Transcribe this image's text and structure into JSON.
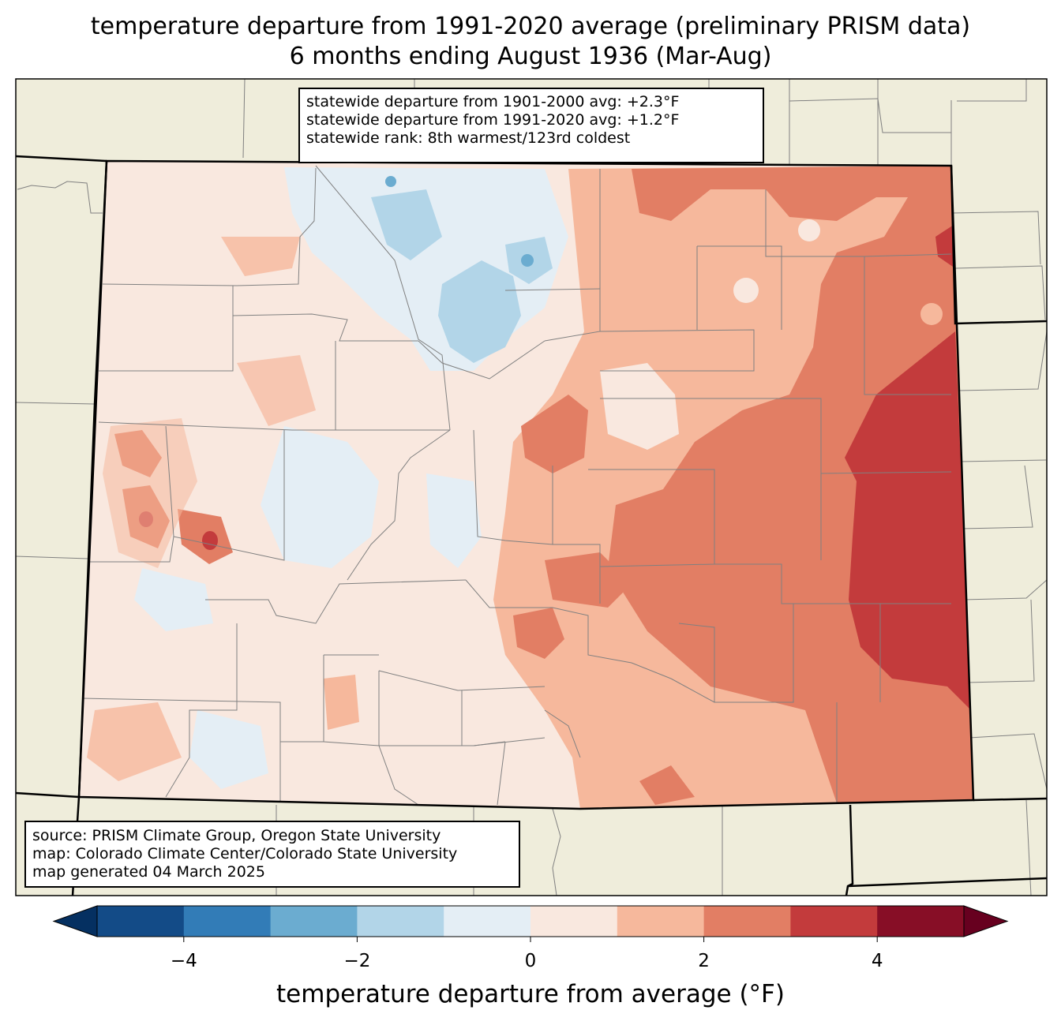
{
  "title_line1": "temperature departure from 1991-2020 average (preliminary PRISM data)",
  "title_line2": "6 months ending August 1936 (Mar-Aug)",
  "stats": {
    "line1": "statewide departure from 1901-2000 avg: +2.3°F",
    "line2": "statewide departure from 1991-2020 avg: +1.2°F",
    "line3": "statewide rank: 8th warmest/123rd coldest"
  },
  "source": {
    "line1": "source: PRISM Climate Group, Oregon State University",
    "line2": "map: Colorado Climate Center/Colorado State University",
    "line3": "map generated 04 March 2025"
  },
  "colorbar": {
    "label": "temperature departure from average (°F)",
    "min": -5,
    "max": 5,
    "bins": [
      {
        "from": -5,
        "to": -4,
        "color": "#134b87"
      },
      {
        "from": -4,
        "to": -3,
        "color": "#327cb7"
      },
      {
        "from": -3,
        "to": -2,
        "color": "#6bacd0"
      },
      {
        "from": -2,
        "to": -1,
        "color": "#b2d5e8"
      },
      {
        "from": -1,
        "to": 0,
        "color": "#e4eef5"
      },
      {
        "from": 0,
        "to": 1,
        "color": "#f9e8df"
      },
      {
        "from": 1,
        "to": 2,
        "color": "#f6b89c"
      },
      {
        "from": 2,
        "to": 3,
        "color": "#e27e64"
      },
      {
        "from": 3,
        "to": 4,
        "color": "#c33b3c"
      },
      {
        "from": 4,
        "to": 5,
        "color": "#870e26"
      }
    ],
    "under_color": "#053061",
    "over_color": "#67001f",
    "ticks": [
      {
        "value": -4,
        "label": "−4"
      },
      {
        "value": -2,
        "label": "−2"
      },
      {
        "value": 0,
        "label": "0"
      },
      {
        "value": 2,
        "label": "2"
      },
      {
        "value": 4,
        "label": "4"
      }
    ]
  },
  "colors": {
    "background_land": "#efeddb",
    "county_lines": "#808080",
    "state_border": "#000000"
  }
}
